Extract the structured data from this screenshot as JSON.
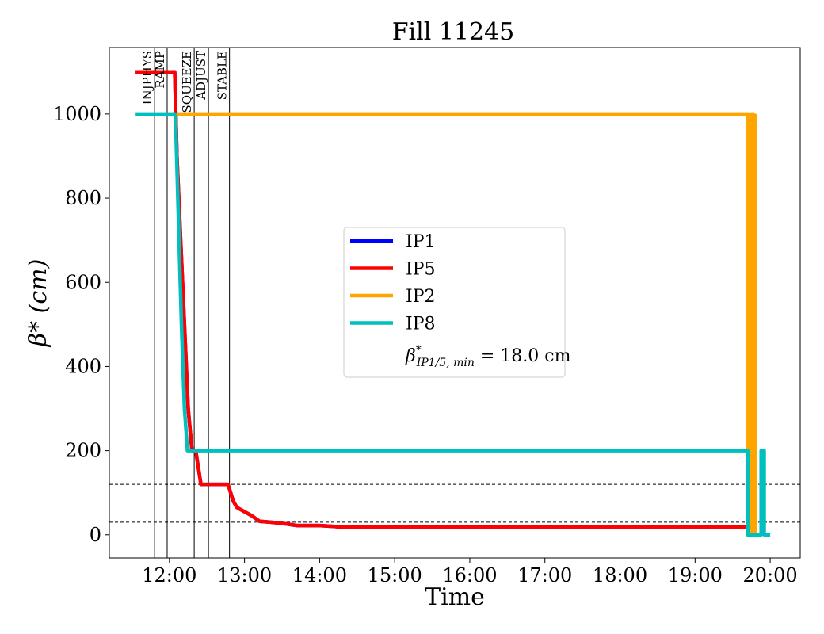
{
  "chart_data": {
    "type": "line",
    "title": "Fill 11245",
    "xlabel": "Time",
    "ylabel": "β* (cm)",
    "x_unit": "hours",
    "xlim": [
      11.2,
      20.4
    ],
    "ylim": [
      -55,
      1158
    ],
    "x_ticks": [
      {
        "x": 12,
        "label": "12:00"
      },
      {
        "x": 13,
        "label": "13:00"
      },
      {
        "x": 14,
        "label": "14:00"
      },
      {
        "x": 15,
        "label": "15:00"
      },
      {
        "x": 16,
        "label": "16:00"
      },
      {
        "x": 17,
        "label": "17:00"
      },
      {
        "x": 18,
        "label": "18:00"
      },
      {
        "x": 19,
        "label": "19:00"
      },
      {
        "x": 20,
        "label": "20:00"
      }
    ],
    "y_ticks": [
      {
        "y": 0,
        "label": "0"
      },
      {
        "y": 200,
        "label": "200"
      },
      {
        "y": 400,
        "label": "400"
      },
      {
        "y": 600,
        "label": "600"
      },
      {
        "y": 800,
        "label": "800"
      },
      {
        "y": 1000,
        "label": "1000"
      }
    ],
    "beam_modes": [
      {
        "label": "INJPHYS",
        "x": 11.8
      },
      {
        "label": "RAMP",
        "x": 11.97
      },
      {
        "label": "SQUEEZE",
        "x": 12.33
      },
      {
        "label": "ADJUST",
        "x": 12.52
      },
      {
        "label": "STABLE",
        "x": 12.8
      }
    ],
    "reference_lines": [
      120,
      30
    ],
    "series": [
      {
        "name": "IP1",
        "color": "#0000ff",
        "x": [
          11.55,
          12.07,
          12.1,
          12.15,
          12.2,
          12.25,
          12.3,
          12.35,
          12.42,
          12.5,
          12.7,
          12.78,
          12.85,
          12.9,
          13.0,
          13.1,
          13.2,
          13.35,
          13.45,
          13.55,
          13.7,
          14.0,
          14.2,
          14.3,
          19.7
        ],
        "y": [
          1100,
          1100,
          900,
          700,
          500,
          300,
          200,
          200,
          120,
          120,
          120,
          120,
          80,
          65,
          55,
          45,
          32,
          30,
          28,
          26,
          22,
          22,
          20,
          18,
          18
        ]
      },
      {
        "name": "IP5",
        "color": "#ff0000",
        "x": [
          11.55,
          12.07,
          12.1,
          12.15,
          12.2,
          12.25,
          12.3,
          12.35,
          12.42,
          12.5,
          12.7,
          12.78,
          12.85,
          12.9,
          13.0,
          13.1,
          13.2,
          13.35,
          13.45,
          13.55,
          13.7,
          14.0,
          14.2,
          14.3,
          19.7
        ],
        "y": [
          1100,
          1100,
          900,
          700,
          500,
          300,
          200,
          200,
          120,
          120,
          120,
          120,
          80,
          65,
          55,
          45,
          32,
          30,
          28,
          26,
          22,
          22,
          20,
          18,
          18
        ]
      },
      {
        "name": "IP2",
        "color": "#ffa500",
        "x": [
          12.1,
          19.7,
          19.7,
          19.72,
          19.72,
          19.74,
          19.74,
          19.76,
          19.76,
          19.78,
          19.78,
          19.8,
          19.8
        ],
        "y": [
          1000,
          1000,
          0,
          0,
          1000,
          1000,
          0,
          0,
          1000,
          1000,
          0,
          0,
          1000
        ]
      },
      {
        "name": "IP8",
        "color": "#00bfbf",
        "x": [
          11.55,
          12.08,
          12.12,
          12.16,
          12.2,
          12.24,
          12.3,
          19.7,
          19.7,
          19.88,
          19.88,
          19.92,
          19.92,
          20.0
        ],
        "y": [
          1000,
          1000,
          750,
          500,
          300,
          200,
          200,
          200,
          0,
          0,
          200,
          200,
          0,
          0
        ]
      }
    ],
    "legend": {
      "placement": "center",
      "extra_text": "β*IP1/5, min = 18.0 cm",
      "extra_main": "β",
      "extra_sup": "*",
      "extra_sub": "IP1/5, min",
      "extra_value": " = 18.0 cm"
    }
  }
}
